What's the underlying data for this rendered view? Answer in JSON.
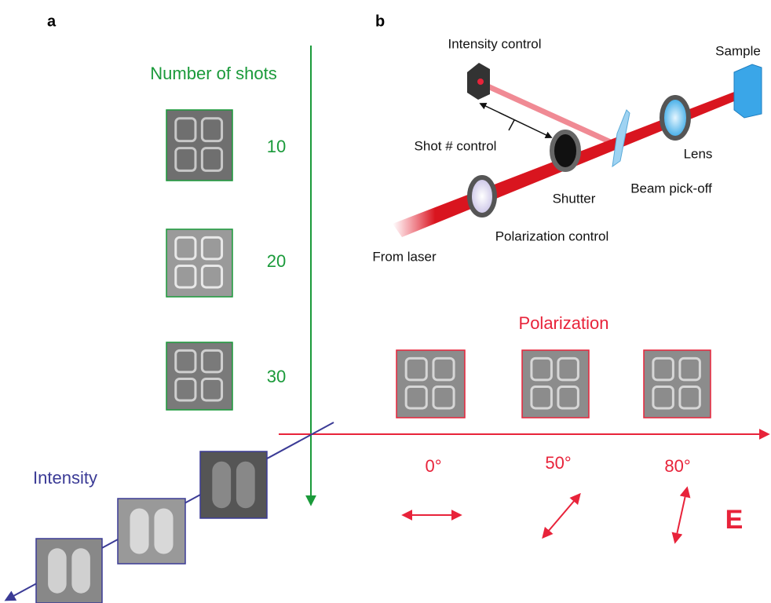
{
  "panel_a": {
    "label": "a",
    "shots_axis_title": "Number of shots",
    "shots": [
      "10",
      "20",
      "30"
    ],
    "intensity_axis_title": "Intensity"
  },
  "panel_b": {
    "label": "b",
    "components": {
      "intensity_control": "Intensity control",
      "sample": "Sample",
      "shot_control": "Shot # control",
      "lens": "Lens",
      "shutter": "Shutter",
      "beam_pickoff": "Beam pick-off",
      "polarization_control": "Polarization control",
      "source": "From laser"
    },
    "polarization_title": "Polarization",
    "angles": [
      "0°",
      "50°",
      "80°"
    ],
    "field_label": "E"
  }
}
